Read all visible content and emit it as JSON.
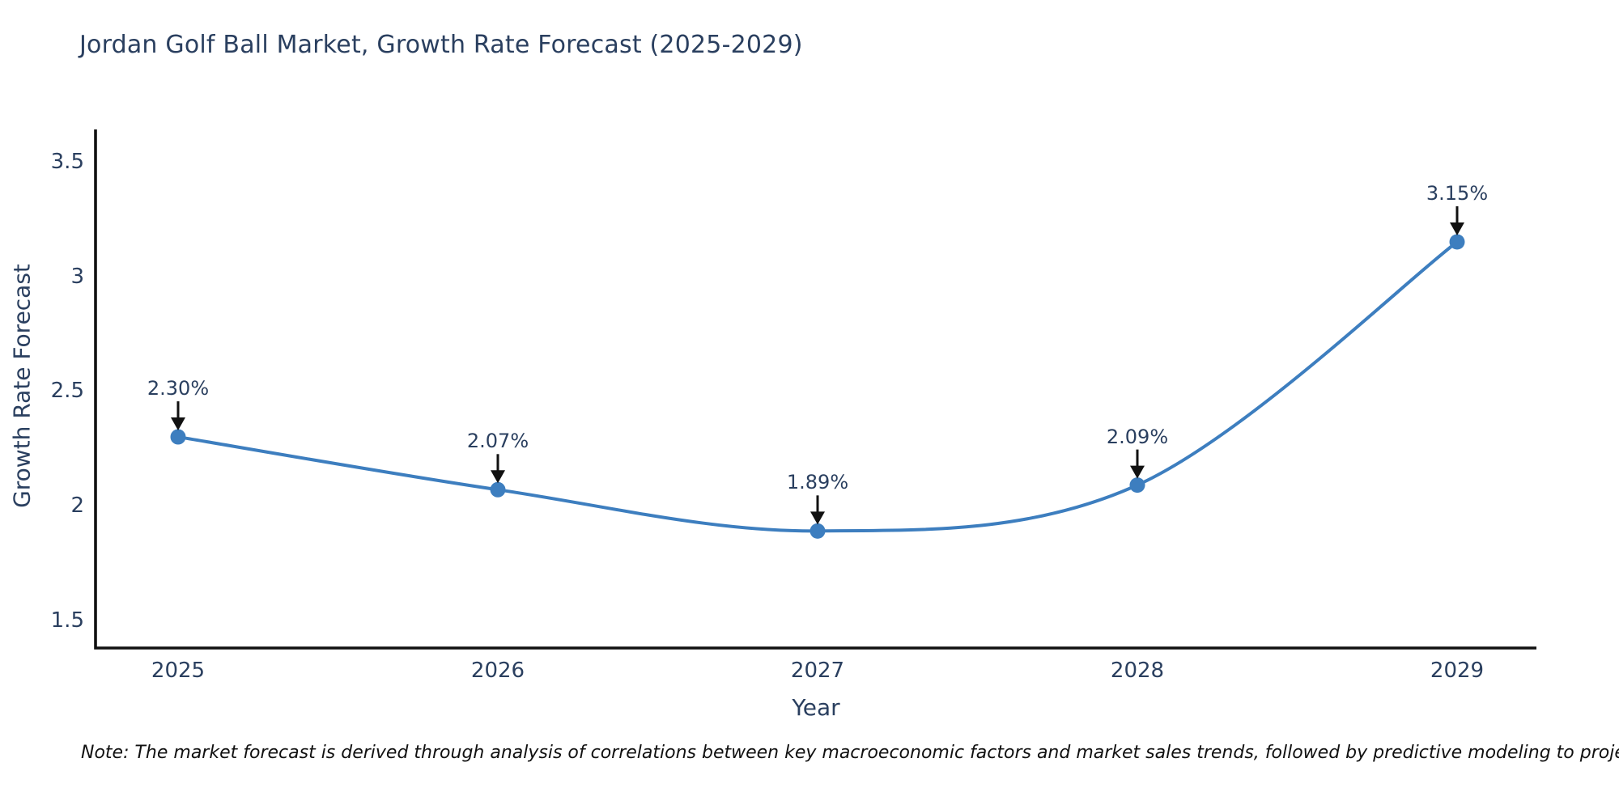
{
  "title": "Jordan Golf Ball Market, Growth Rate Forecast (2025-2029)",
  "note": "Note: The market forecast is derived through analysis of correlations between key macroeconomic factors and market sales trends, followed by predictive modeling to project future sales",
  "chart_data": {
    "type": "line",
    "title": "Jordan Golf Ball Market, Growth Rate Forecast (2025-2029)",
    "categories": [
      "2025",
      "2026",
      "2027",
      "2028",
      "2029"
    ],
    "series": [
      {
        "name": "Growth Rate Forecast",
        "values": [
          2.3,
          2.07,
          1.89,
          2.09,
          3.15
        ],
        "point_labels": [
          "2.30%",
          "2.07%",
          "1.89%",
          "2.09%",
          "3.15%"
        ]
      }
    ],
    "xlabel": "Year",
    "ylabel": "Growth Rate Forecast",
    "ytick_labels": [
      "1.5",
      "2",
      "2.5",
      "3",
      "3.5"
    ],
    "ytick_values": [
      1.5,
      2.0,
      2.5,
      3.0,
      3.5
    ],
    "ylim": [
      1.38,
      3.64
    ],
    "grid": false,
    "legend_position": "none",
    "line_shape": "spline",
    "colors": {
      "line": "#3d7ebf",
      "marker": "#3d7ebf",
      "axis": "#111111",
      "annotation_arrow": "#111111",
      "text": "#2a3f5f",
      "note_text": "#111111",
      "background": "#ffffff"
    }
  }
}
